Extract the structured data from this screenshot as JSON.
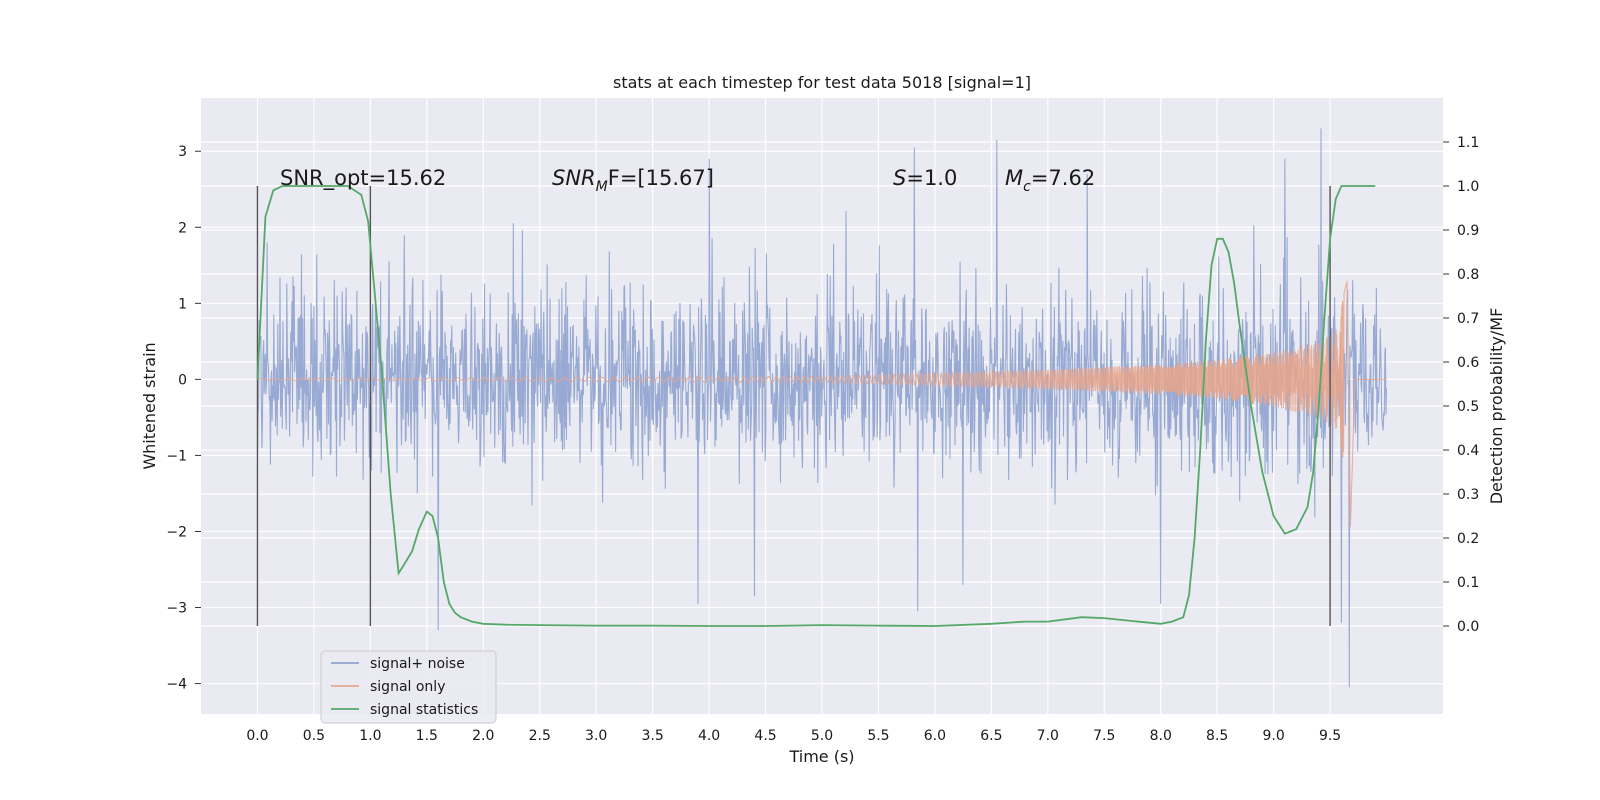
{
  "chart_data": {
    "type": "line",
    "title": "stats at each timestep for test data 5018 [signal=1]",
    "xlabel": "Time (s)",
    "ylabel": "Whitened strain",
    "ylabel_right": "Detection probability/MF",
    "xlim": [
      -0.5,
      10.5
    ],
    "ylim": [
      -4.4,
      3.7
    ],
    "ylim_right": [
      -0.2,
      1.2
    ],
    "xticks": [
      "0.0",
      "0.5",
      "1.0",
      "1.5",
      "2.0",
      "2.5",
      "3.0",
      "3.5",
      "4.0",
      "4.5",
      "5.0",
      "5.5",
      "6.0",
      "6.5",
      "7.0",
      "7.5",
      "8.0",
      "8.5",
      "9.0",
      "9.5"
    ],
    "xtick_values": [
      0.0,
      0.5,
      1.0,
      1.5,
      2.0,
      2.5,
      3.0,
      3.5,
      4.0,
      4.5,
      5.0,
      5.5,
      6.0,
      6.5,
      7.0,
      7.5,
      8.0,
      8.5,
      9.0,
      9.5
    ],
    "yticks": [
      "3",
      "2",
      "1",
      "0",
      "−1",
      "−2",
      "−3",
      "−4"
    ],
    "ytick_values": [
      3,
      2,
      1,
      0,
      -1,
      -2,
      -3,
      -4
    ],
    "yticks_right": [
      "1.1",
      "1.0",
      "0.9",
      "0.8",
      "0.7",
      "0.6",
      "0.5",
      "0.4",
      "0.3",
      "0.2",
      "0.1",
      "0.0"
    ],
    "ytick_values_right": [
      1.1,
      1.0,
      0.9,
      0.8,
      0.7,
      0.6,
      0.5,
      0.4,
      0.3,
      0.2,
      0.1,
      0.0
    ],
    "grid": true,
    "legend_position": "bottom-left",
    "annotations": {
      "snr_opt": "SNR_opt=15.62",
      "snr_mf_base": "SNR",
      "snr_mf_sub": "M",
      "snr_mf_tail": "F=[15.67]",
      "s_label": "S",
      "s_value": "=1.0",
      "mc_base": "M",
      "mc_sub": "c",
      "mc_value": "=7.62"
    },
    "vertical_markers": [
      0.0,
      1.0,
      9.5
    ],
    "vertical_marker_range_right": [
      0.0,
      1.0
    ],
    "series": [
      {
        "name": "signal+ noise",
        "color": "#8fa3cf",
        "axis": "left",
        "t_range": [
          0.0,
          10.0
        ],
        "envelope_typical": 1.3,
        "peaks": [
          {
            "t": 5.82,
            "y": 3.05
          },
          {
            "t": 6.55,
            "y": 3.15
          },
          {
            "t": 9.42,
            "y": 3.3
          },
          {
            "t": 4.0,
            "y": 2.9
          },
          {
            "t": 9.1,
            "y": 2.9
          },
          {
            "t": 7.35,
            "y": 2.7
          },
          {
            "t": 9.67,
            "y": -4.05
          },
          {
            "t": 1.6,
            "y": -3.3
          },
          {
            "t": 3.9,
            "y": -2.95
          },
          {
            "t": 5.85,
            "y": -3.05
          },
          {
            "t": 8.0,
            "y": -2.95
          },
          {
            "t": 4.4,
            "y": -2.85
          },
          {
            "t": 9.6,
            "y": -3.2
          },
          {
            "t": 6.25,
            "y": -2.7
          }
        ]
      },
      {
        "name": "signal only",
        "color": "#e8a58a",
        "axis": "left",
        "t_range": [
          0.0,
          10.0
        ],
        "envelope": [
          [
            0.0,
            0.01
          ],
          [
            5.0,
            0.04
          ],
          [
            6.0,
            0.08
          ],
          [
            7.0,
            0.13
          ],
          [
            8.0,
            0.2
          ],
          [
            8.5,
            0.26
          ],
          [
            9.0,
            0.36
          ],
          [
            9.4,
            0.5
          ],
          [
            9.55,
            0.65
          ],
          [
            9.65,
            1.3
          ],
          [
            9.68,
            -1.95
          ],
          [
            9.72,
            0.0
          ],
          [
            10.0,
            0.0
          ]
        ]
      },
      {
        "name": "signal statistics",
        "color": "#55a868",
        "axis": "right",
        "x": [
          0.0,
          0.07,
          0.14,
          0.22,
          0.33,
          0.5,
          0.65,
          0.8,
          0.92,
          0.98,
          1.03,
          1.1,
          1.18,
          1.25,
          1.3,
          1.37,
          1.43,
          1.5,
          1.55,
          1.6,
          1.65,
          1.7,
          1.75,
          1.8,
          1.9,
          2.0,
          2.2,
          2.5,
          3.0,
          3.5,
          4.0,
          4.5,
          5.0,
          5.5,
          6.0,
          6.5,
          6.8,
          7.0,
          7.3,
          7.5,
          7.8,
          8.0,
          8.1,
          8.2,
          8.25,
          8.3,
          8.35,
          8.4,
          8.45,
          8.5,
          8.55,
          8.6,
          8.65,
          8.7,
          8.8,
          8.9,
          9.0,
          9.1,
          9.2,
          9.3,
          9.35,
          9.4,
          9.45,
          9.5,
          9.55,
          9.6,
          9.65,
          9.7,
          9.8,
          9.9
        ],
        "values": [
          0.56,
          0.93,
          0.99,
          1.0,
          1.0,
          1.0,
          1.0,
          1.0,
          0.98,
          0.92,
          0.78,
          0.58,
          0.3,
          0.12,
          0.14,
          0.17,
          0.22,
          0.26,
          0.25,
          0.2,
          0.1,
          0.05,
          0.03,
          0.02,
          0.01,
          0.005,
          0.003,
          0.002,
          0.001,
          0.001,
          0.0,
          0.0,
          0.002,
          0.001,
          0.0,
          0.005,
          0.01,
          0.01,
          0.02,
          0.018,
          0.01,
          0.005,
          0.01,
          0.02,
          0.07,
          0.2,
          0.4,
          0.65,
          0.82,
          0.88,
          0.88,
          0.85,
          0.78,
          0.68,
          0.5,
          0.35,
          0.25,
          0.21,
          0.22,
          0.27,
          0.35,
          0.5,
          0.7,
          0.88,
          0.97,
          1.0,
          1.0,
          1.0,
          1.0,
          1.0
        ]
      }
    ]
  }
}
